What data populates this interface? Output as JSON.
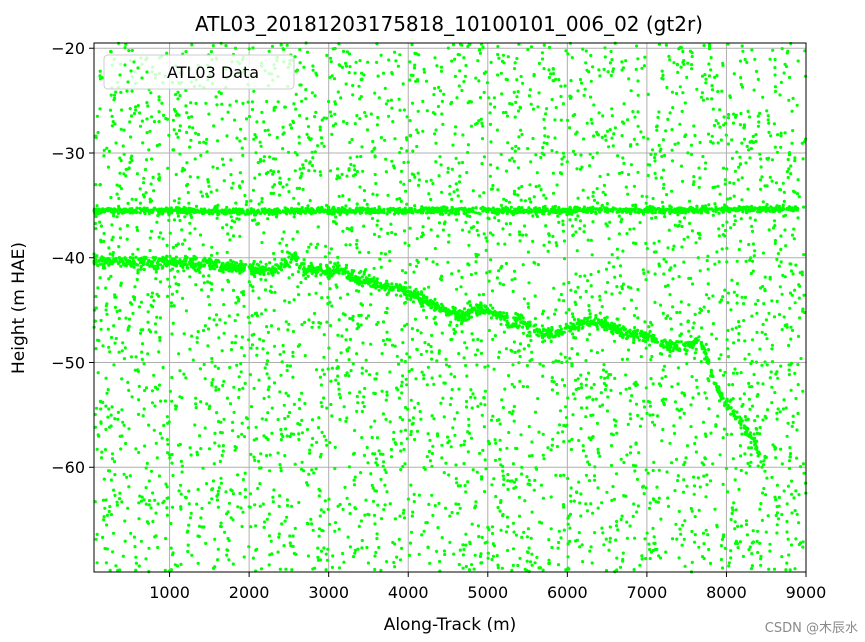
{
  "chart_data": {
    "type": "scatter",
    "title": "ATL03_20181203175818_10100101_006_02 (gt2r)",
    "xlabel": "Along-Track (m)",
    "ylabel": "Height (m HAE)",
    "xlim": [
      50,
      9000
    ],
    "ylim": [
      -70,
      -19.5
    ],
    "xticks": [
      1000,
      2000,
      3000,
      4000,
      5000,
      6000,
      7000,
      8000,
      9000
    ],
    "xtick_labels": [
      "1000",
      "2000",
      "3000",
      "4000",
      "5000",
      "6000",
      "7000",
      "8000",
      "9000"
    ],
    "yticks": [
      -20,
      -30,
      -40,
      -50,
      -60
    ],
    "ytick_labels": [
      "−20",
      "−30",
      "−40",
      "−50",
      "−60"
    ],
    "grid": true,
    "legend_position": "top-left",
    "marker_color": "#00ff00",
    "series": [
      {
        "name": "ATL03 Data",
        "color": "#00ff00",
        "surface_profiles": [
          {
            "x": [
              50,
              1000,
              2000,
              3000,
              4000,
              5000,
              6000,
              6600,
              6700,
              7000,
              8000,
              8900
            ],
            "y": [
              -35.5,
              -35.5,
              -35.6,
              -35.5,
              -35.5,
              -35.5,
              -35.5,
              -35.4,
              -35.5,
              -35.5,
              -35.4,
              -35.3
            ]
          },
          {
            "x": [
              50,
              500,
              1000,
              1500,
              2000,
              2300,
              2450,
              2550,
              2650,
              2800,
              3000,
              3150,
              3300,
              3600,
              3900,
              4200,
              4500,
              4700,
              4900,
              5100,
              5300,
              5400,
              5600,
              5800,
              6000,
              6200,
              6450,
              6700,
              7000,
              7300,
              7500,
              7650,
              7750,
              7850,
              8000,
              8200,
              8350,
              8450
            ],
            "y": [
              -40.2,
              -40.5,
              -40.4,
              -40.7,
              -41.0,
              -41.2,
              -40.5,
              -39.6,
              -41.0,
              -41.2,
              -41.3,
              -41.0,
              -41.8,
              -42.5,
              -43.0,
              -44.0,
              -45.2,
              -45.5,
              -44.8,
              -45.3,
              -46.5,
              -45.8,
              -47.0,
              -47.2,
              -46.8,
              -46.2,
              -46.2,
              -47.2,
              -47.5,
              -48.5,
              -48.5,
              -47.8,
              -49.5,
              -52.0,
              -54.0,
              -56.0,
              -57.5,
              -60.0
            ]
          }
        ]
      }
    ]
  },
  "watermark": "CSDN @木辰水"
}
